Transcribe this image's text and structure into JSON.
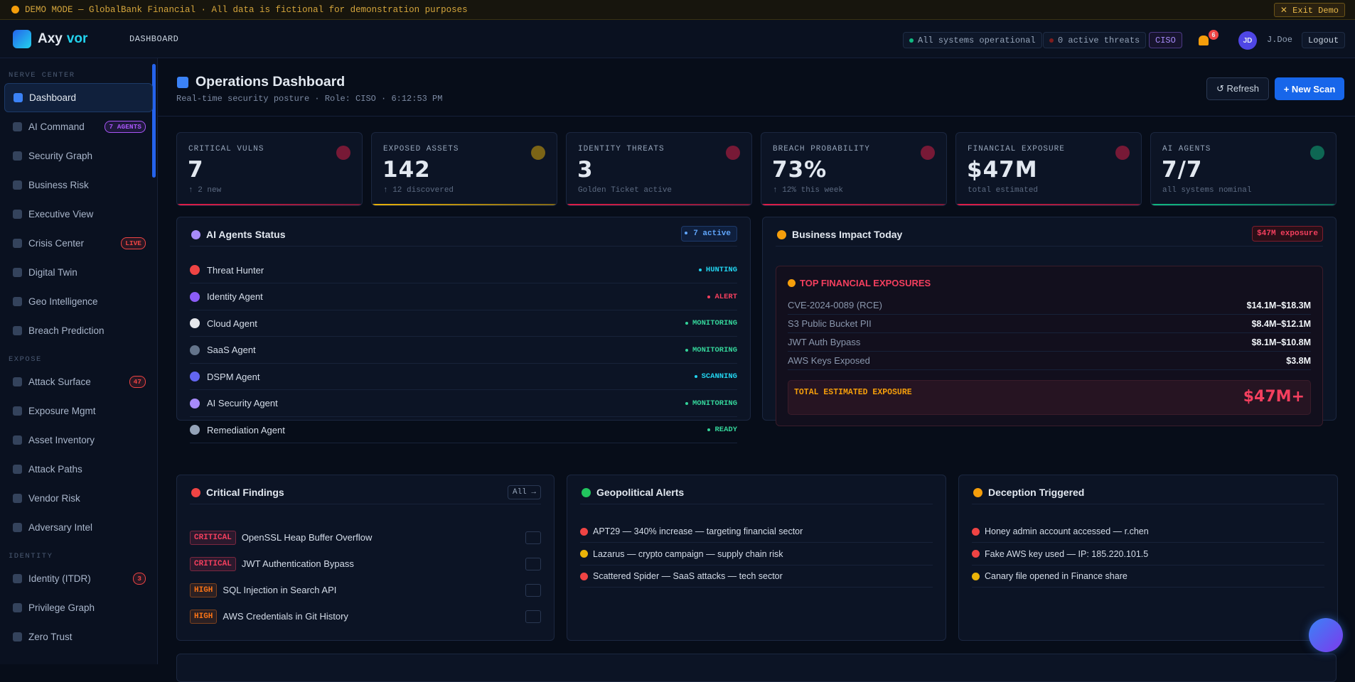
{
  "banner": {
    "text": "DEMO MODE — GlobalBank Financial · All data is fictional for demonstration purposes",
    "exit": "✕ Exit Demo"
  },
  "topbar": {
    "logo_a": "Axy",
    "logo_b": "vor",
    "page": "DASHBOARD",
    "status": "All systems operational",
    "threats": "0 active threats",
    "role": "CISO",
    "notifications": "6",
    "avatar": "JD",
    "user": "J.Doe",
    "logout": "Logout"
  },
  "sidebar": [
    {
      "label": "NERVE CENTER",
      "items": [
        {
          "name": "Dashboard",
          "active": true
        },
        {
          "name": "AI Command",
          "badge": "7 AGENTS",
          "badge_color": "#a855f7"
        },
        {
          "name": "Security Graph"
        },
        {
          "name": "Business Risk"
        },
        {
          "name": "Executive View"
        },
        {
          "name": "Crisis Center",
          "badge": "LIVE",
          "badge_color": "#ef4444"
        },
        {
          "name": "Digital Twin"
        },
        {
          "name": "Geo Intelligence"
        },
        {
          "name": "Breach Prediction"
        }
      ]
    },
    {
      "label": "EXPOSE",
      "items": [
        {
          "name": "Attack Surface",
          "badge": "47",
          "badge_color": "#ef4444"
        },
        {
          "name": "Exposure Mgmt"
        },
        {
          "name": "Asset Inventory"
        },
        {
          "name": "Attack Paths"
        },
        {
          "name": "Vendor Risk"
        },
        {
          "name": "Adversary Intel"
        }
      ]
    },
    {
      "label": "IDENTITY",
      "items": [
        {
          "name": "Identity (ITDR)",
          "badge": "3",
          "badge_color": "#ef4444"
        },
        {
          "name": "Privilege Graph"
        },
        {
          "name": "Zero Trust"
        }
      ]
    }
  ],
  "header": {
    "title": "Operations Dashboard",
    "subtitle": "Real-time security posture · Role: CISO · 6:12:53 PM",
    "refresh": "↺ Refresh",
    "scan": "+ New Scan"
  },
  "kpis": [
    {
      "label": "CRITICAL VULNS",
      "value": "7",
      "sub": "↑ 2 new",
      "color": "#e11d48"
    },
    {
      "label": "EXPOSED ASSETS",
      "value": "142",
      "sub": "↑ 12 discovered",
      "color": "#eab308"
    },
    {
      "label": "IDENTITY THREATS",
      "value": "3",
      "sub": "Golden Ticket active",
      "color": "#e11d48"
    },
    {
      "label": "BREACH PROBABILITY",
      "value": "73%",
      "sub": "↑ 12% this week",
      "color": "#e11d48"
    },
    {
      "label": "FINANCIAL EXPOSURE",
      "value": "$47M",
      "sub": "total estimated",
      "color": "#e11d48"
    },
    {
      "label": "AI AGENTS",
      "value": "7/7",
      "sub": "all systems nominal",
      "color": "#10b981"
    }
  ],
  "agents": {
    "title": "AI Agents Status",
    "badge": "7 active",
    "rows": [
      {
        "name": "Threat Hunter",
        "status": "HUNTING",
        "color": "#22d3ee"
      },
      {
        "name": "Identity Agent",
        "status": "ALERT",
        "color": "#f43f5e"
      },
      {
        "name": "Cloud Agent",
        "status": "MONITORING",
        "color": "#34d399"
      },
      {
        "name": "SaaS Agent",
        "status": "MONITORING",
        "color": "#34d399"
      },
      {
        "name": "DSPM Agent",
        "status": "SCANNING",
        "color": "#22d3ee"
      },
      {
        "name": "AI Security Agent",
        "status": "MONITORING",
        "color": "#34d399"
      },
      {
        "name": "Remediation Agent",
        "status": "READY",
        "color": "#34d399"
      }
    ]
  },
  "impact": {
    "title": "Business Impact Today",
    "badge": "$47M exposure",
    "box_title": "TOP FINANCIAL EXPOSURES",
    "rows": [
      {
        "name": "CVE-2024-0089 (RCE)",
        "value": "$14.1M–$18.3M"
      },
      {
        "name": "S3 Public Bucket PII",
        "value": "$8.4M–$12.1M"
      },
      {
        "name": "JWT Auth Bypass",
        "value": "$8.1M–$10.8M"
      },
      {
        "name": "AWS Keys Exposed",
        "value": "$3.8M"
      }
    ],
    "total_label": "TOTAL ESTIMATED EXPOSURE",
    "total_value": "$47M+"
  },
  "findings": {
    "title": "Critical Findings",
    "all": "All →",
    "rows": [
      {
        "severity": "CRITICAL",
        "color": "#f43f5e",
        "title": "OpenSSL Heap Buffer Overflow"
      },
      {
        "severity": "CRITICAL",
        "color": "#f43f5e",
        "title": "JWT Authentication Bypass"
      },
      {
        "severity": "HIGH",
        "color": "#f97316",
        "title": "SQL Injection in Search API"
      },
      {
        "severity": "HIGH",
        "color": "#f97316",
        "title": "AWS Credentials in Git History"
      }
    ]
  },
  "geo": {
    "title": "Geopolitical Alerts",
    "rows": [
      {
        "text": "APT29 — 340% increase — targeting financial sector",
        "color": "#ef4444"
      },
      {
        "text": "Lazarus — crypto campaign — supply chain risk",
        "color": "#eab308"
      },
      {
        "text": "Scattered Spider — SaaS attacks — tech sector",
        "color": "#ef4444"
      }
    ]
  },
  "deception": {
    "title": "Deception Triggered",
    "rows": [
      {
        "text": "Honey admin account accessed — r.chen",
        "color": "#ef4444"
      },
      {
        "text": "Fake AWS key used — IP: 185.220.101.5",
        "color": "#ef4444"
      },
      {
        "text": "Canary file opened in Finance share",
        "color": "#eab308"
      }
    ]
  }
}
